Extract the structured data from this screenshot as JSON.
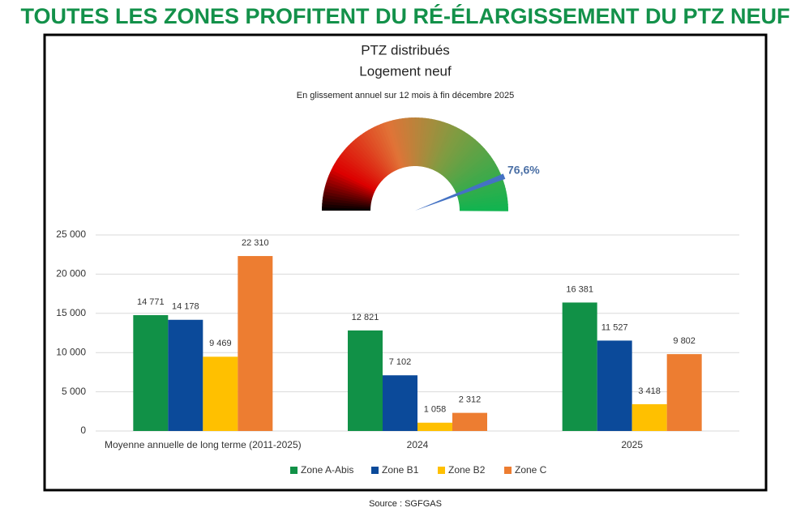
{
  "header": {
    "title": "TOUTES LES ZONES PROFITENT DU RÉ-ÉLARGISSEMENT DU PTZ NEUF"
  },
  "footer": {
    "source": "Source : SGFGAS"
  },
  "chart_data": [
    {
      "type": "gauge",
      "title": "PTZ distribués",
      "subtitle": "Logement neuf",
      "annotation": "En glissement annuel sur 12 mois à fin décembre 2025",
      "value": 76.6,
      "value_label": "76,6%",
      "range": [
        -100,
        100
      ],
      "color": "#4472c4"
    },
    {
      "type": "bar",
      "categories": [
        "Moyenne annuelle de long terme (2011-2025)",
        "2024",
        "2025"
      ],
      "series": [
        {
          "name": "Zone A-Abis",
          "color": "#119147",
          "values": [
            14771,
            12821,
            16381
          ],
          "value_labels": [
            "14 771",
            "12 821",
            "16 381"
          ]
        },
        {
          "name": "Zone B1",
          "color": "#0b4a9a",
          "values": [
            14178,
            7102,
            11527
          ],
          "value_labels": [
            "14 178",
            "7 102",
            "11 527"
          ]
        },
        {
          "name": "Zone B2",
          "color": "#ffc000",
          "values": [
            9469,
            1058,
            3418
          ],
          "value_labels": [
            "9 469",
            "1 058",
            "3 418"
          ]
        },
        {
          "name": "Zone C",
          "color": "#ed7d31",
          "values": [
            22310,
            2312,
            9802
          ],
          "value_labels": [
            "22 310",
            "2 312",
            "9 802"
          ]
        }
      ],
      "ylim": [
        0,
        25000
      ],
      "yticks": [
        0,
        {
          "value": 5000,
          "label": "5 000"
        },
        {
          "value": 10000,
          "label": "10 000"
        },
        {
          "value": 15000,
          "label": "15 000"
        },
        {
          "value": 20000,
          "label": "20 000"
        },
        {
          "value": 25000,
          "label": "25 000"
        }
      ],
      "grid": true,
      "legend": "bottom"
    }
  ]
}
